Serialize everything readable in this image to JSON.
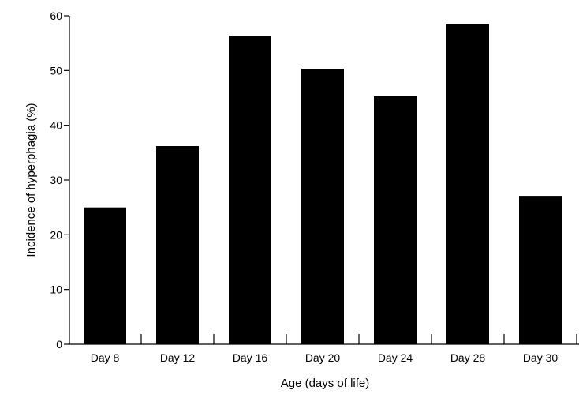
{
  "chart_data": {
    "type": "bar",
    "title": "",
    "xlabel": "Age (days of life)",
    "ylabel": "Incidence of hyperphagia (%)",
    "categories": [
      "Day 8",
      "Day 12",
      "Day 16",
      "Day 20",
      "Day 24",
      "Day 28",
      "Day 30"
    ],
    "values": [
      25,
      36.2,
      56.4,
      50.3,
      45.3,
      58.5,
      27.1
    ],
    "ylim": [
      0,
      60
    ],
    "yticks": [
      0,
      10,
      20,
      30,
      40,
      50,
      60
    ],
    "grid": false,
    "legend": "none",
    "bar_color": "#000000"
  }
}
